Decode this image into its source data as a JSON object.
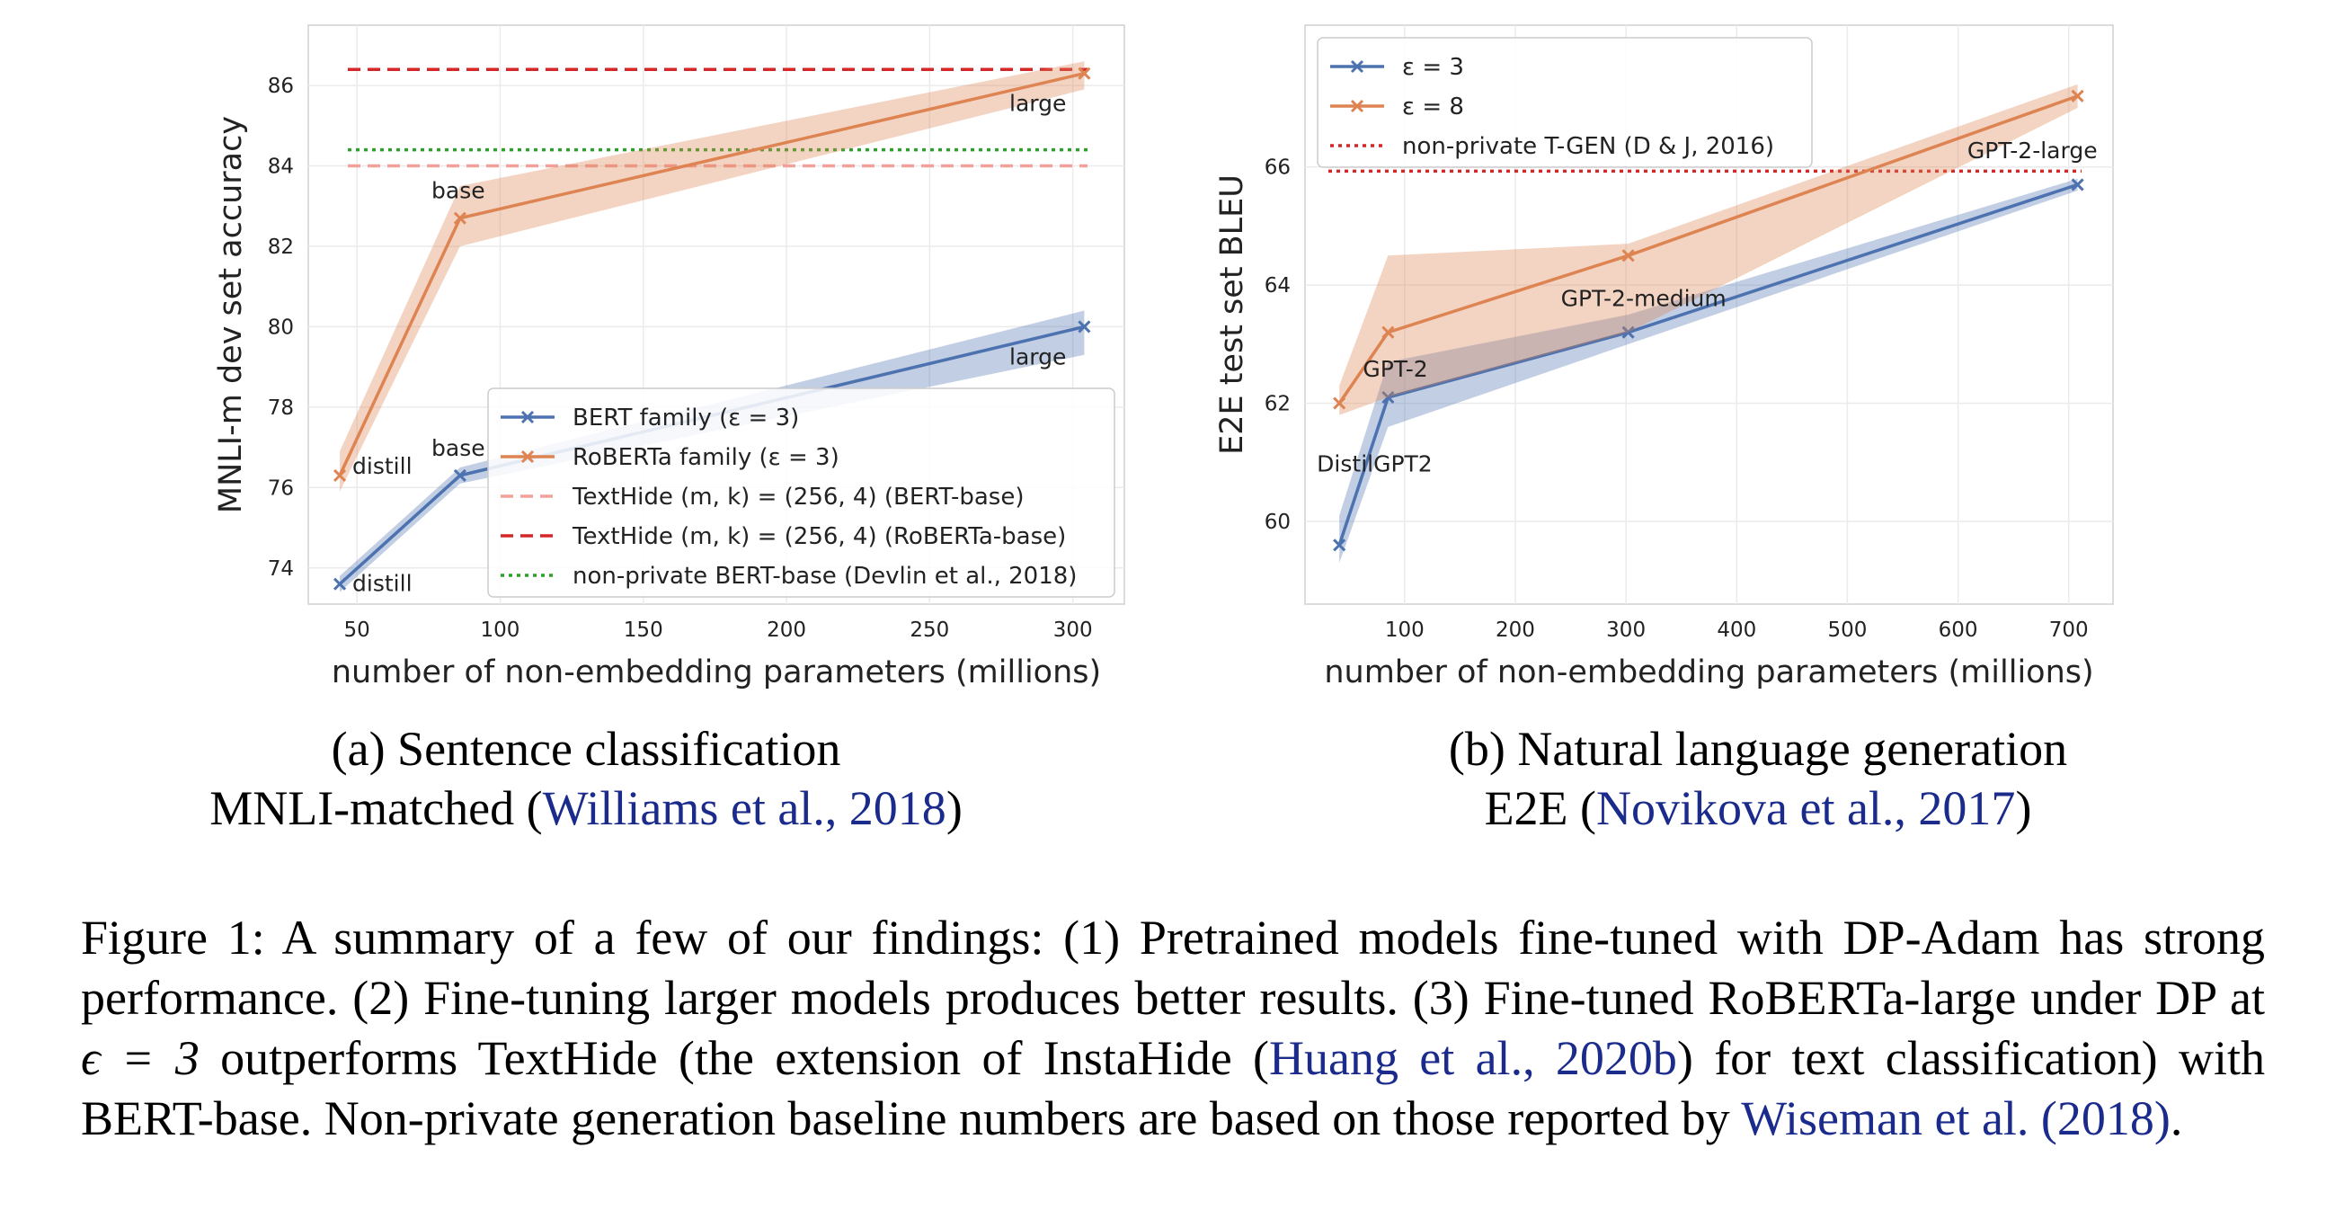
{
  "colors": {
    "blue": "#4c72b0",
    "orange": "#dd8452",
    "light_red": "#f4a09a",
    "red": "#d62728",
    "green": "#2ca02c",
    "grid": "#ebebeb",
    "axes_border": "#d0d0d0",
    "link": "#1a2b8c"
  },
  "chart_data": [
    {
      "type": "line",
      "xlabel": "number of non-embedding parameters (millions)",
      "ylabel": "MNLI-m dev set accuracy",
      "xlim": [
        33,
        318
      ],
      "ylim": [
        73.1,
        87.5
      ],
      "xticks": [
        50,
        100,
        150,
        200,
        250,
        300
      ],
      "yticks": [
        74,
        76,
        78,
        80,
        82,
        84,
        86
      ],
      "grid": true,
      "legend_position": "lower-right",
      "series": [
        {
          "name": "BERT family (ε = 3)",
          "color": "#4c72b0",
          "marker": "x",
          "x": [
            44,
            86,
            304
          ],
          "y": [
            73.6,
            76.3,
            80.0
          ],
          "band_low": [
            73.4,
            76.1,
            79.3
          ],
          "band_high": [
            73.8,
            76.5,
            80.4
          ],
          "point_labels": [
            "distill",
            "base",
            "large"
          ]
        },
        {
          "name": "RoBERTa family (ε = 3)",
          "color": "#dd8452",
          "marker": "x",
          "x": [
            44,
            86,
            304
          ],
          "y": [
            76.3,
            82.7,
            86.3
          ],
          "band_low": [
            75.9,
            82.0,
            85.9
          ],
          "band_high": [
            76.9,
            83.5,
            86.6
          ],
          "point_labels": [
            "distill",
            "base",
            "large"
          ]
        }
      ],
      "reference_lines": [
        {
          "name": "TextHide (m, k) = (256, 4) (BERT-base)",
          "y": 84.0,
          "style": "dashed",
          "color": "#f4a09a"
        },
        {
          "name": "TextHide (m, k) = (256, 4) (RoBERTa-base)",
          "y": 86.4,
          "style": "dashed",
          "color": "#d62728"
        },
        {
          "name": "non-private BERT-base (Devlin et al., 2018)",
          "y": 84.4,
          "style": "dotted",
          "color": "#2ca02c"
        }
      ]
    },
    {
      "type": "line",
      "xlabel": "number of non-embedding parameters (millions)",
      "ylabel": "E2E test set BLEU",
      "xlim": [
        10,
        740
      ],
      "ylim": [
        58.6,
        68.4
      ],
      "xticks": [
        100,
        200,
        300,
        400,
        500,
        600,
        700
      ],
      "yticks": [
        60,
        62,
        64,
        66
      ],
      "grid": true,
      "legend_position": "upper-left",
      "series": [
        {
          "name": "ε = 3",
          "color": "#4c72b0",
          "marker": "x",
          "x": [
            41,
            85,
            302,
            708
          ],
          "y": [
            59.6,
            62.1,
            63.2,
            65.7
          ],
          "band_low": [
            59.3,
            61.6,
            63.0,
            65.6
          ],
          "band_high": [
            60.1,
            62.7,
            63.5,
            65.8
          ]
        },
        {
          "name": "ε = 8",
          "color": "#dd8452",
          "marker": "x",
          "x": [
            41,
            85,
            302,
            708
          ],
          "y": [
            62.0,
            63.2,
            64.5,
            67.2
          ],
          "band_low": [
            61.8,
            62.1,
            63.2,
            67.0
          ],
          "band_high": [
            62.3,
            64.5,
            64.7,
            67.4
          ]
        }
      ],
      "point_labels": [
        {
          "text": "DistilGPT2",
          "x": 41,
          "y": 61.0
        },
        {
          "text": "GPT-2",
          "x": 85,
          "y": 62.6
        },
        {
          "text": "GPT-2-medium",
          "x": 302,
          "y": 63.8
        },
        {
          "text": "GPT-2-large",
          "x": 708,
          "y": 66.3
        }
      ],
      "reference_lines": [
        {
          "name": "non-private T-GEN (D & J, 2016)",
          "y": 65.93,
          "style": "dotted",
          "color": "#d62728"
        }
      ]
    }
  ],
  "caption_a": {
    "line1": "(a) Sentence classification",
    "line2_pre": "MNLI-matched (",
    "line2_link": "Williams et al., 2018",
    "line2_post": ")"
  },
  "caption_b": {
    "line1": "(b) Natural language generation",
    "line2_pre": "E2E (",
    "line2_link": "Novikova et al., 2017",
    "line2_post": ")"
  },
  "figure_caption": {
    "part1": "Figure 1: A summary of a few of our findings: (1) Pretrained models fine-tuned with DP-Adam has strong performance. (2) Fine-tuning larger models produces better results. (3) Fine-tuned RoBERTa-large under DP at ",
    "math": "ϵ = 3",
    "part2": " outperforms TextHide (the extension of InstaHide (",
    "link1": "Huang et al., 2020b",
    "part3": ") for text classification) with BERT-base. Non-private generation baseline numbers are based on those reported by ",
    "link2": "Wiseman et al. (2018)",
    "part4": "."
  }
}
